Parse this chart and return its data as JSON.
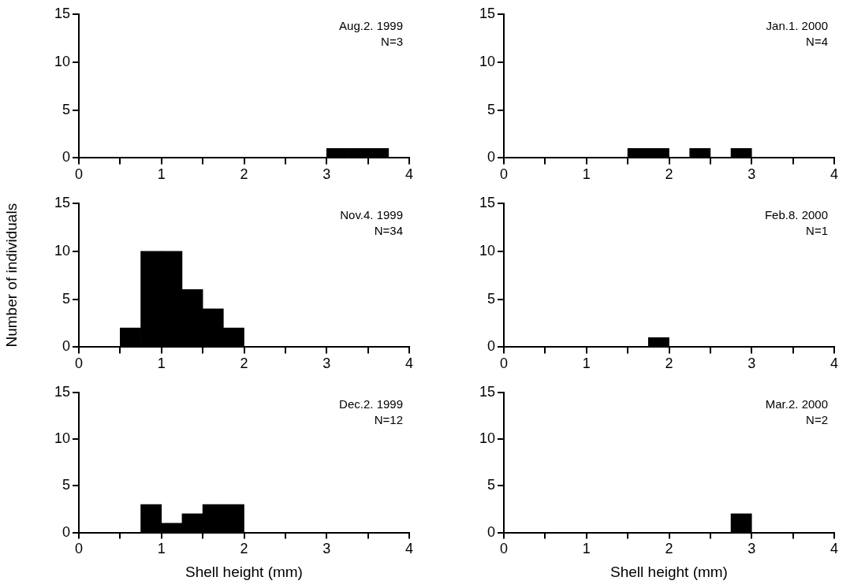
{
  "chart_data": [
    {
      "type": "histogram",
      "bins": [
        0,
        0.25,
        0.5,
        0.75,
        1,
        1.25,
        1.5,
        1.75,
        2,
        2.25,
        2.5,
        2.75,
        3,
        3.25,
        3.5,
        3.75,
        4
      ],
      "values": [
        0,
        0,
        0,
        0,
        0,
        0,
        0,
        0,
        0,
        0,
        0,
        0,
        1,
        1,
        1,
        0
      ],
      "color": "#000000",
      "annotations": [
        "Aug.2. 1999",
        "N=3"
      ],
      "xlim": [
        0,
        4
      ],
      "ylim": [
        0,
        15
      ],
      "xticks": [
        0,
        {
          "value": 0.5,
          "label": null
        },
        1,
        {
          "value": 1.5,
          "label": null
        },
        2,
        {
          "value": 2.5,
          "label": null
        },
        3,
        {
          "value": 3.5,
          "label": null
        },
        4
      ],
      "yticks": [
        0,
        5,
        10,
        15
      ]
    },
    {
      "type": "histogram",
      "bins": [
        0,
        0.25,
        0.5,
        0.75,
        1,
        1.25,
        1.5,
        1.75,
        2,
        2.25,
        2.5,
        2.75,
        3,
        3.25,
        3.5,
        3.75,
        4
      ],
      "values": [
        0,
        0,
        0,
        0,
        0,
        0,
        1,
        1,
        0,
        1,
        0,
        1,
        0,
        0,
        0,
        0
      ],
      "color": "#000000",
      "annotations": [
        "Jan.1. 2000",
        "N=4"
      ],
      "xlim": [
        0,
        4
      ],
      "ylim": [
        0,
        15
      ],
      "xticks": [
        0,
        {
          "value": 0.5,
          "label": null
        },
        1,
        {
          "value": 1.5,
          "label": null
        },
        2,
        {
          "value": 2.5,
          "label": null
        },
        3,
        {
          "value": 3.5,
          "label": null
        },
        4
      ],
      "yticks": [
        0,
        5,
        10,
        15
      ]
    },
    {
      "type": "histogram",
      "bins": [
        0,
        0.25,
        0.5,
        0.75,
        1,
        1.25,
        1.5,
        1.75,
        2,
        2.25,
        2.5,
        2.75,
        3,
        3.25,
        3.5,
        3.75,
        4
      ],
      "values": [
        0,
        0,
        2,
        10,
        10,
        6,
        4,
        2,
        0,
        0,
        0,
        0,
        0,
        0,
        0,
        0
      ],
      "color": "#000000",
      "ylabel": "Number of individuals",
      "annotations": [
        "Nov.4. 1999",
        "N=34"
      ],
      "xlim": [
        0,
        4
      ],
      "ylim": [
        0,
        15
      ],
      "xticks": [
        0,
        {
          "value": 0.5,
          "label": null
        },
        1,
        {
          "value": 1.5,
          "label": null
        },
        2,
        {
          "value": 2.5,
          "label": null
        },
        3,
        {
          "value": 3.5,
          "label": null
        },
        4
      ],
      "yticks": [
        0,
        5,
        10,
        15
      ]
    },
    {
      "type": "histogram",
      "bins": [
        0,
        0.25,
        0.5,
        0.75,
        1,
        1.25,
        1.5,
        1.75,
        2,
        2.25,
        2.5,
        2.75,
        3,
        3.25,
        3.5,
        3.75,
        4
      ],
      "values": [
        0,
        0,
        0,
        0,
        0,
        0,
        0,
        1,
        0,
        0,
        0,
        0,
        0,
        0,
        0,
        0
      ],
      "color": "#000000",
      "annotations": [
        "Feb.8. 2000",
        "N=1"
      ],
      "xlim": [
        0,
        4
      ],
      "ylim": [
        0,
        15
      ],
      "xticks": [
        0,
        {
          "value": 0.5,
          "label": null
        },
        1,
        {
          "value": 1.5,
          "label": null
        },
        2,
        {
          "value": 2.5,
          "label": null
        },
        3,
        {
          "value": 3.5,
          "label": null
        },
        4
      ],
      "yticks": [
        0,
        5,
        10,
        15
      ]
    },
    {
      "type": "histogram",
      "bins": [
        0,
        0.25,
        0.5,
        0.75,
        1,
        1.25,
        1.5,
        1.75,
        2,
        2.25,
        2.5,
        2.75,
        3,
        3.25,
        3.5,
        3.75,
        4
      ],
      "values": [
        0,
        0,
        0,
        3,
        1,
        2,
        3,
        3,
        0,
        0,
        0,
        0,
        0,
        0,
        0,
        0
      ],
      "color": "#000000",
      "xlabel": "Shell height (mm)",
      "annotations": [
        "Dec.2. 1999",
        "N=12"
      ],
      "xlim": [
        0,
        4
      ],
      "ylim": [
        0,
        15
      ],
      "xticks": [
        0,
        {
          "value": 0.5,
          "label": null
        },
        1,
        {
          "value": 1.5,
          "label": null
        },
        2,
        {
          "value": 2.5,
          "label": null
        },
        3,
        {
          "value": 3.5,
          "label": null
        },
        4
      ],
      "yticks": [
        0,
        5,
        10,
        15
      ]
    },
    {
      "type": "histogram",
      "bins": [
        0,
        0.25,
        0.5,
        0.75,
        1,
        1.25,
        1.5,
        1.75,
        2,
        2.25,
        2.5,
        2.75,
        3,
        3.25,
        3.5,
        3.75,
        4
      ],
      "values": [
        0,
        0,
        0,
        0,
        0,
        0,
        0,
        0,
        0,
        0,
        0,
        2,
        0,
        0,
        0,
        0
      ],
      "color": "#000000",
      "xlabel": "Shell height (mm)",
      "annotations": [
        "Mar.2. 2000",
        "N=2"
      ],
      "xlim": [
        0,
        4
      ],
      "ylim": [
        0,
        15
      ],
      "xticks": [
        0,
        {
          "value": 0.5,
          "label": null
        },
        1,
        {
          "value": 1.5,
          "label": null
        },
        2,
        {
          "value": 2.5,
          "label": null
        },
        3,
        {
          "value": 3.5,
          "label": null
        },
        4
      ],
      "yticks": [
        0,
        5,
        10,
        15
      ]
    }
  ]
}
